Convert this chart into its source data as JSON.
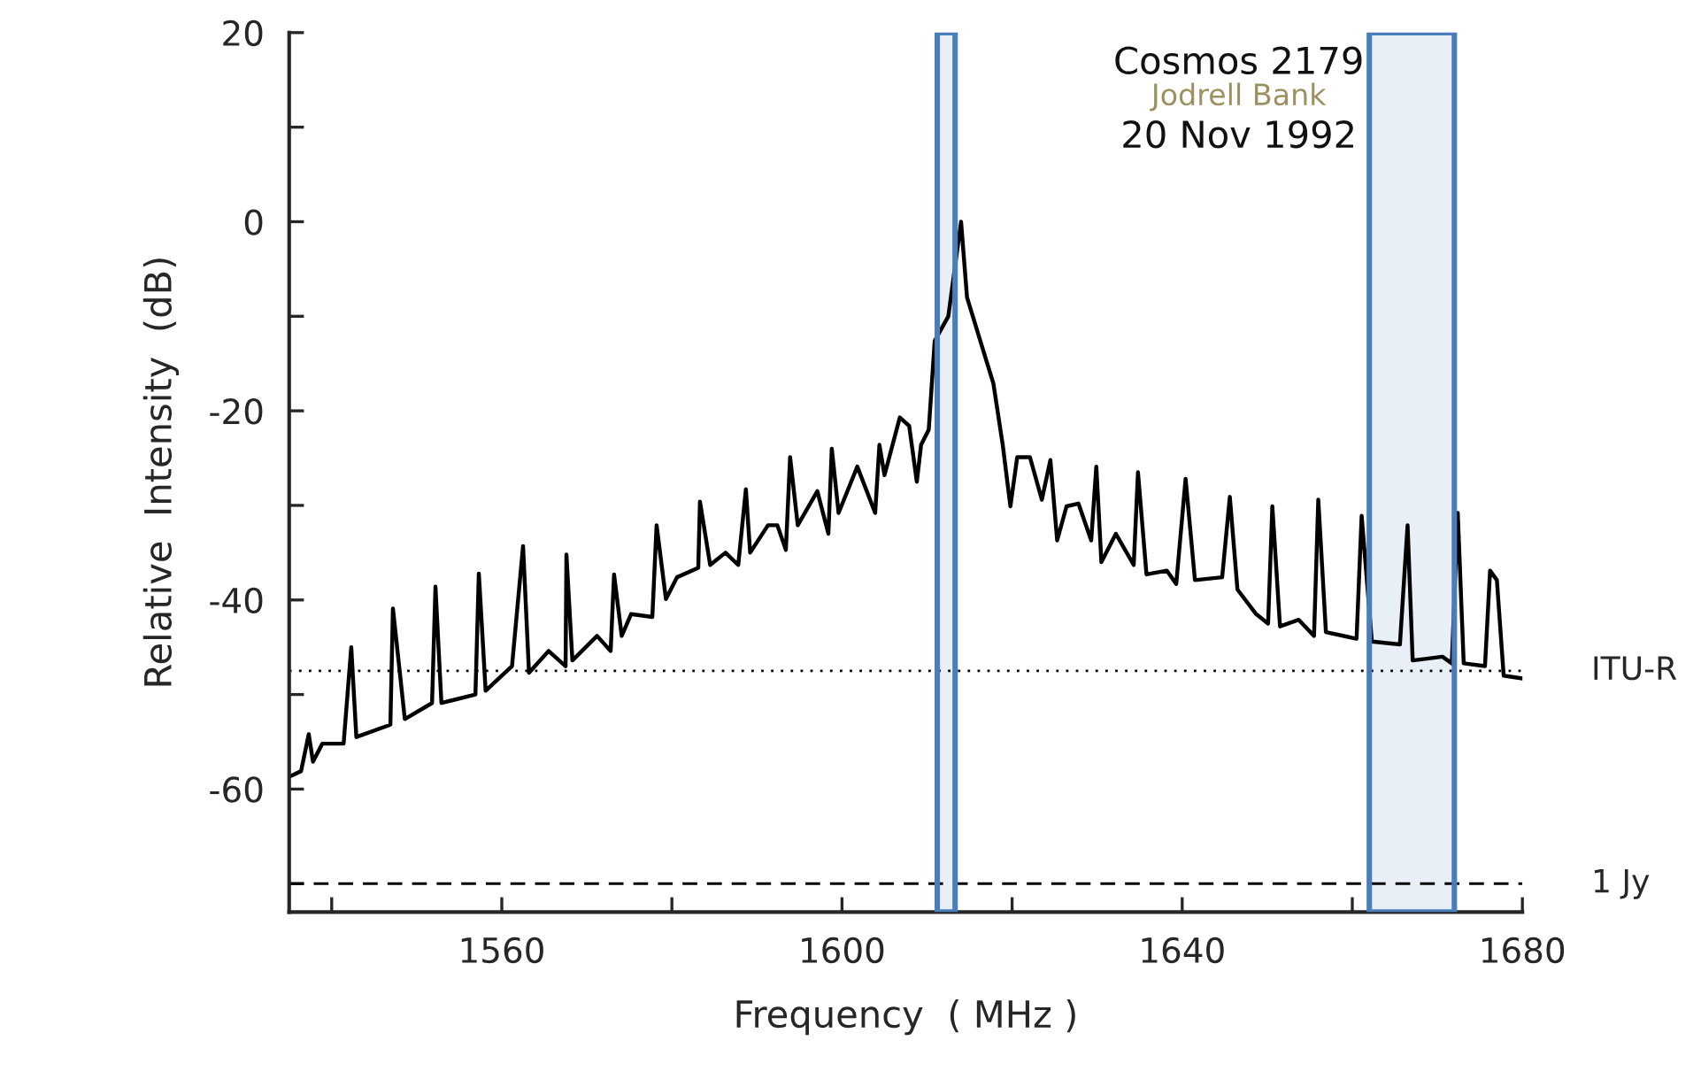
{
  "chart_data": {
    "type": "line",
    "xlabel": "Frequency  ( MHz )",
    "ylabel": "Relative  Intensity  (dB)",
    "annotations": [
      "Cosmos 2179",
      "Jodrell Bank",
      "20 Nov 1992"
    ],
    "xlim": [
      1535,
      1680
    ],
    "ylim": [
      -73,
      20
    ],
    "xticks": [
      {
        "value": 1540,
        "label": null
      },
      1560,
      {
        "value": 1580,
        "label": null
      },
      1600,
      {
        "value": 1620,
        "label": null
      },
      1640,
      {
        "value": 1660,
        "label": null
      },
      1680
    ],
    "yticks": [
      20,
      {
        "value": 10,
        "label": null
      },
      0,
      {
        "value": -10,
        "label": null
      },
      -20,
      {
        "value": -30,
        "label": null
      },
      -40,
      {
        "value": -50,
        "label": null
      },
      -60,
      {
        "value": -70,
        "label": null
      }
    ],
    "grid": false,
    "legend": false,
    "marker": "none",
    "line_style": "solid",
    "ref_lines": [
      {
        "axis": "y",
        "value": -47.5,
        "label": "ITU-R",
        "line_style": "dotted",
        "color": "#000000"
      },
      {
        "axis": "y",
        "value": -70,
        "label": "1 Jy",
        "line_style": "dashed",
        "color": "#000000"
      }
    ],
    "bands": [
      {
        "axis": "x",
        "from": 1611.2,
        "to": 1613.3,
        "color": "#4a7ebb"
      },
      {
        "axis": "x",
        "from": 1662,
        "to": 1672,
        "color": "#4a7ebb"
      }
    ],
    "series": [
      {
        "color": "#000000",
        "x": [
          1535,
          1536.4,
          1537.3,
          1537.8,
          1538.9,
          1541.4,
          1542.3,
          1542.9,
          1546.9,
          1547.2,
          1548.6,
          1551.8,
          1552.2,
          1552.9,
          1556.9,
          1557.3,
          1558.1,
          1561.2,
          1562.5,
          1563.2,
          1565.5,
          1567.5,
          1567.6,
          1568.3,
          1571.2,
          1572.8,
          1573.2,
          1574.1,
          1575.2,
          1577.7,
          1578.2,
          1579.3,
          1580.6,
          1583.1,
          1583.3,
          1584.5,
          1586.3,
          1587.8,
          1588.7,
          1589.2,
          1591.3,
          1592.4,
          1593.4,
          1593.9,
          1594.8,
          1597.1,
          1598.4,
          1598.8,
          1599.6,
          1601.8,
          1603.9,
          1604.4,
          1605,
          1606.8,
          1607.9,
          1608.8,
          1609.3,
          1610.2,
          1610.9,
          1612.5,
          1614,
          1614.7,
          1616.7,
          1617.8,
          1618.9,
          1619.8,
          1620.6,
          1622.1,
          1623.5,
          1624.5,
          1625.3,
          1626.4,
          1627.8,
          1629.3,
          1629.9,
          1630.5,
          1632.2,
          1634.3,
          1634.8,
          1635.8,
          1638.2,
          1639.3,
          1640.4,
          1641.5,
          1644.7,
          1645.6,
          1646.5,
          1648.7,
          1650.1,
          1650.6,
          1651.5,
          1653.7,
          1655.5,
          1656,
          1656.9,
          1660.5,
          1661.1,
          1662.3,
          1665.6,
          1666.5,
          1667.1,
          1670.6,
          1671.7,
          1672.4,
          1673.1,
          1675.6,
          1676.2,
          1677,
          1677.8,
          1680
        ],
        "values": [
          -58.7,
          -58.1,
          -54.2,
          -57.1,
          -55.2,
          -55.2,
          -45,
          -54.5,
          -53.2,
          -40.9,
          -52.6,
          -50.9,
          -38.6,
          -50.9,
          -50,
          -37.2,
          -49.6,
          -47,
          -34.3,
          -47.7,
          -45.4,
          -47,
          -35.2,
          -46.4,
          -43.8,
          -45.4,
          -37.3,
          -43.8,
          -41.5,
          -41.8,
          -32.1,
          -39.9,
          -37.6,
          -36.6,
          -29.6,
          -36.3,
          -35,
          -36.3,
          -28.3,
          -35,
          -32.1,
          -32.1,
          -34.7,
          -24.9,
          -32.1,
          -28.5,
          -33,
          -24,
          -30.8,
          -25.9,
          -30.8,
          -23.6,
          -26.8,
          -20.7,
          -21.6,
          -27.5,
          -23.6,
          -22,
          -12.6,
          -10,
          0,
          -8,
          -13.9,
          -17.1,
          -23.6,
          -30.1,
          -24.9,
          -24.9,
          -29.4,
          -25.2,
          -33.7,
          -30.1,
          -29.8,
          -33.7,
          -25.9,
          -36,
          -33,
          -36.3,
          -26.5,
          -37.3,
          -36.9,
          -38.3,
          -27.2,
          -37.9,
          -37.6,
          -29.1,
          -38.9,
          -41.5,
          -42.5,
          -30.1,
          -42.8,
          -42.1,
          -43.8,
          -29.4,
          -43.4,
          -44.1,
          -31.1,
          -44.4,
          -44.7,
          -32.1,
          -46.4,
          -46,
          -46.7,
          -30.8,
          -46.7,
          -47,
          -36.9,
          -37.9,
          -48,
          -48.3
        ]
      }
    ]
  }
}
